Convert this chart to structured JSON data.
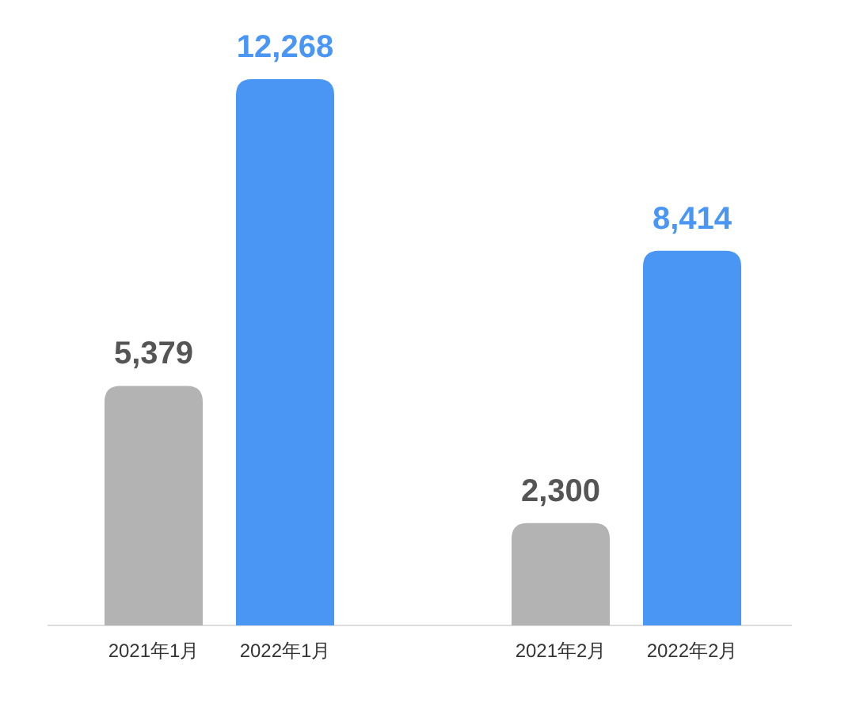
{
  "chart_data": {
    "type": "bar",
    "categories": [
      "2021年1月",
      "2022年1月",
      "2021年2月",
      "2022年2月"
    ],
    "values": [
      5379,
      12268,
      2300,
      8414
    ],
    "colors": [
      "#b3b3b3",
      "#4a96f5",
      "#b3b3b3",
      "#4a96f5"
    ],
    "data_labels": true,
    "value_labels": [
      "5,379",
      "12,268",
      "2,300",
      "8,414"
    ]
  }
}
